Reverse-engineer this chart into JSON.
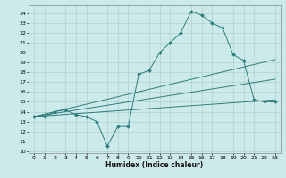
{
  "title": "",
  "xlabel": "Humidex (Indice chaleur)",
  "ylabel": "",
  "bg_color": "#cdeaea",
  "grid_color": "#b0d0d0",
  "line_color": "#2e7d7d",
  "xlim": [
    -0.5,
    23.5
  ],
  "ylim": [
    9.8,
    24.8
  ],
  "yticks": [
    10,
    11,
    12,
    13,
    14,
    15,
    16,
    17,
    18,
    19,
    20,
    21,
    22,
    23,
    24
  ],
  "xticks": [
    0,
    1,
    2,
    3,
    4,
    5,
    6,
    7,
    8,
    9,
    10,
    11,
    12,
    13,
    14,
    15,
    16,
    17,
    18,
    19,
    20,
    21,
    22,
    23
  ],
  "series": [
    {
      "x": [
        0,
        1,
        2,
        3,
        4,
        5,
        6,
        7,
        8,
        9,
        10,
        11,
        12,
        13,
        14,
        15,
        16,
        17,
        18,
        19,
        20,
        21,
        22,
        23
      ],
      "y": [
        13.5,
        13.5,
        14.0,
        14.2,
        13.7,
        13.5,
        13.0,
        10.5,
        12.5,
        12.5,
        17.8,
        18.2,
        20.0,
        21.0,
        22.0,
        24.2,
        23.8,
        23.0,
        22.5,
        19.8,
        19.2,
        15.2,
        15.0,
        15.0
      ]
    },
    {
      "x": [
        0,
        23
      ],
      "y": [
        13.5,
        19.3
      ]
    },
    {
      "x": [
        0,
        23
      ],
      "y": [
        13.5,
        17.3
      ]
    },
    {
      "x": [
        0,
        23
      ],
      "y": [
        13.5,
        15.2
      ]
    }
  ]
}
